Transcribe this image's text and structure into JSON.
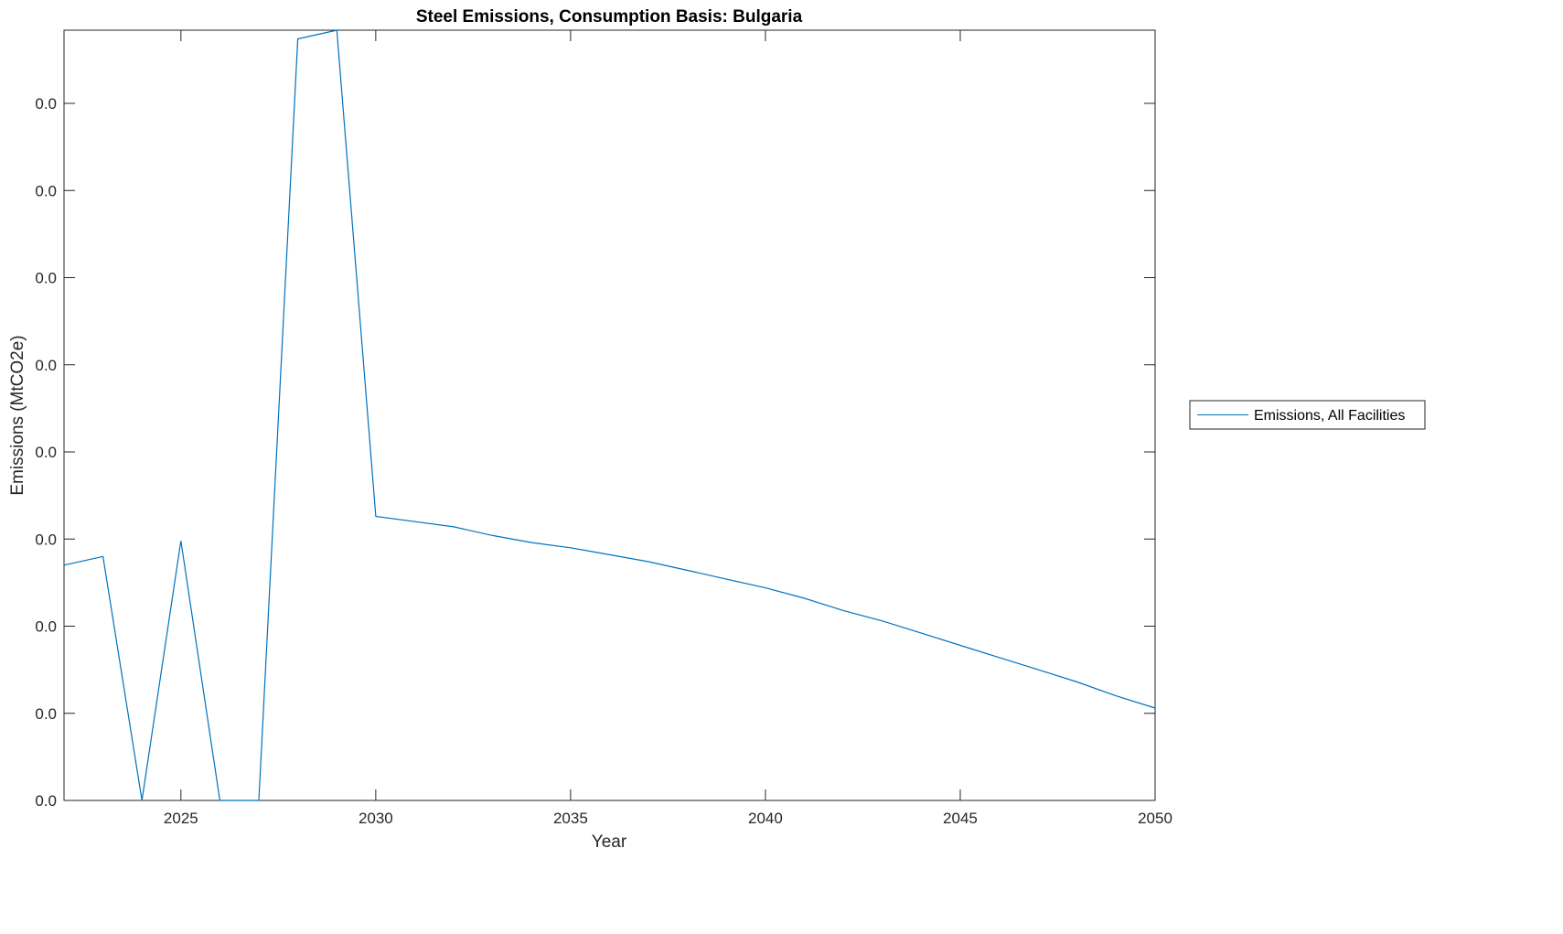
{
  "chart_data": {
    "type": "line",
    "title": "Steel Emissions, Consumption Basis: Bulgaria",
    "xlabel": "Year",
    "ylabel": "Emissions (MtCO2e)",
    "xlim": [
      2022,
      2050
    ],
    "ylim": [
      0,
      0.0442
    ],
    "xticks": [
      2025,
      2030,
      2035,
      2040,
      2045,
      2050
    ],
    "xtick_labels": [
      "2025",
      "2030",
      "2035",
      "2040",
      "2045",
      "2050"
    ],
    "yticks": [
      0,
      0.005,
      0.01,
      0.015,
      0.02,
      0.025,
      0.03,
      0.035,
      0.04
    ],
    "ytick_labels": [
      "0.0",
      "0.0",
      "0.0",
      "0.0",
      "0.0",
      "0.0",
      "0.0",
      "0.0",
      "0.0"
    ],
    "grid": false,
    "legend_position": "outside-right",
    "series": [
      {
        "name": "Emissions, All Facilities",
        "color": "#0072BD",
        "x": [
          2022,
          2023,
          2024,
          2025,
          2026,
          2027,
          2028,
          2029,
          2030,
          2031,
          2032,
          2033,
          2034,
          2035,
          2036,
          2037,
          2038,
          2039,
          2040,
          2041,
          2042,
          2043,
          2044,
          2045,
          2046,
          2047,
          2048,
          2049,
          2050
        ],
        "y": [
          0.0135,
          0.014,
          0,
          0.0149,
          0,
          0,
          0.0437,
          0.0442,
          0.0163,
          0.016,
          0.0157,
          0.0152,
          0.0148,
          0.0145,
          0.0141,
          0.0137,
          0.0132,
          0.0127,
          0.0122,
          0.0116,
          0.0109,
          0.0103,
          0.0096,
          0.0089,
          0.0082,
          0.0075,
          0.0068,
          0.006,
          0.0053
        ]
      }
    ]
  }
}
